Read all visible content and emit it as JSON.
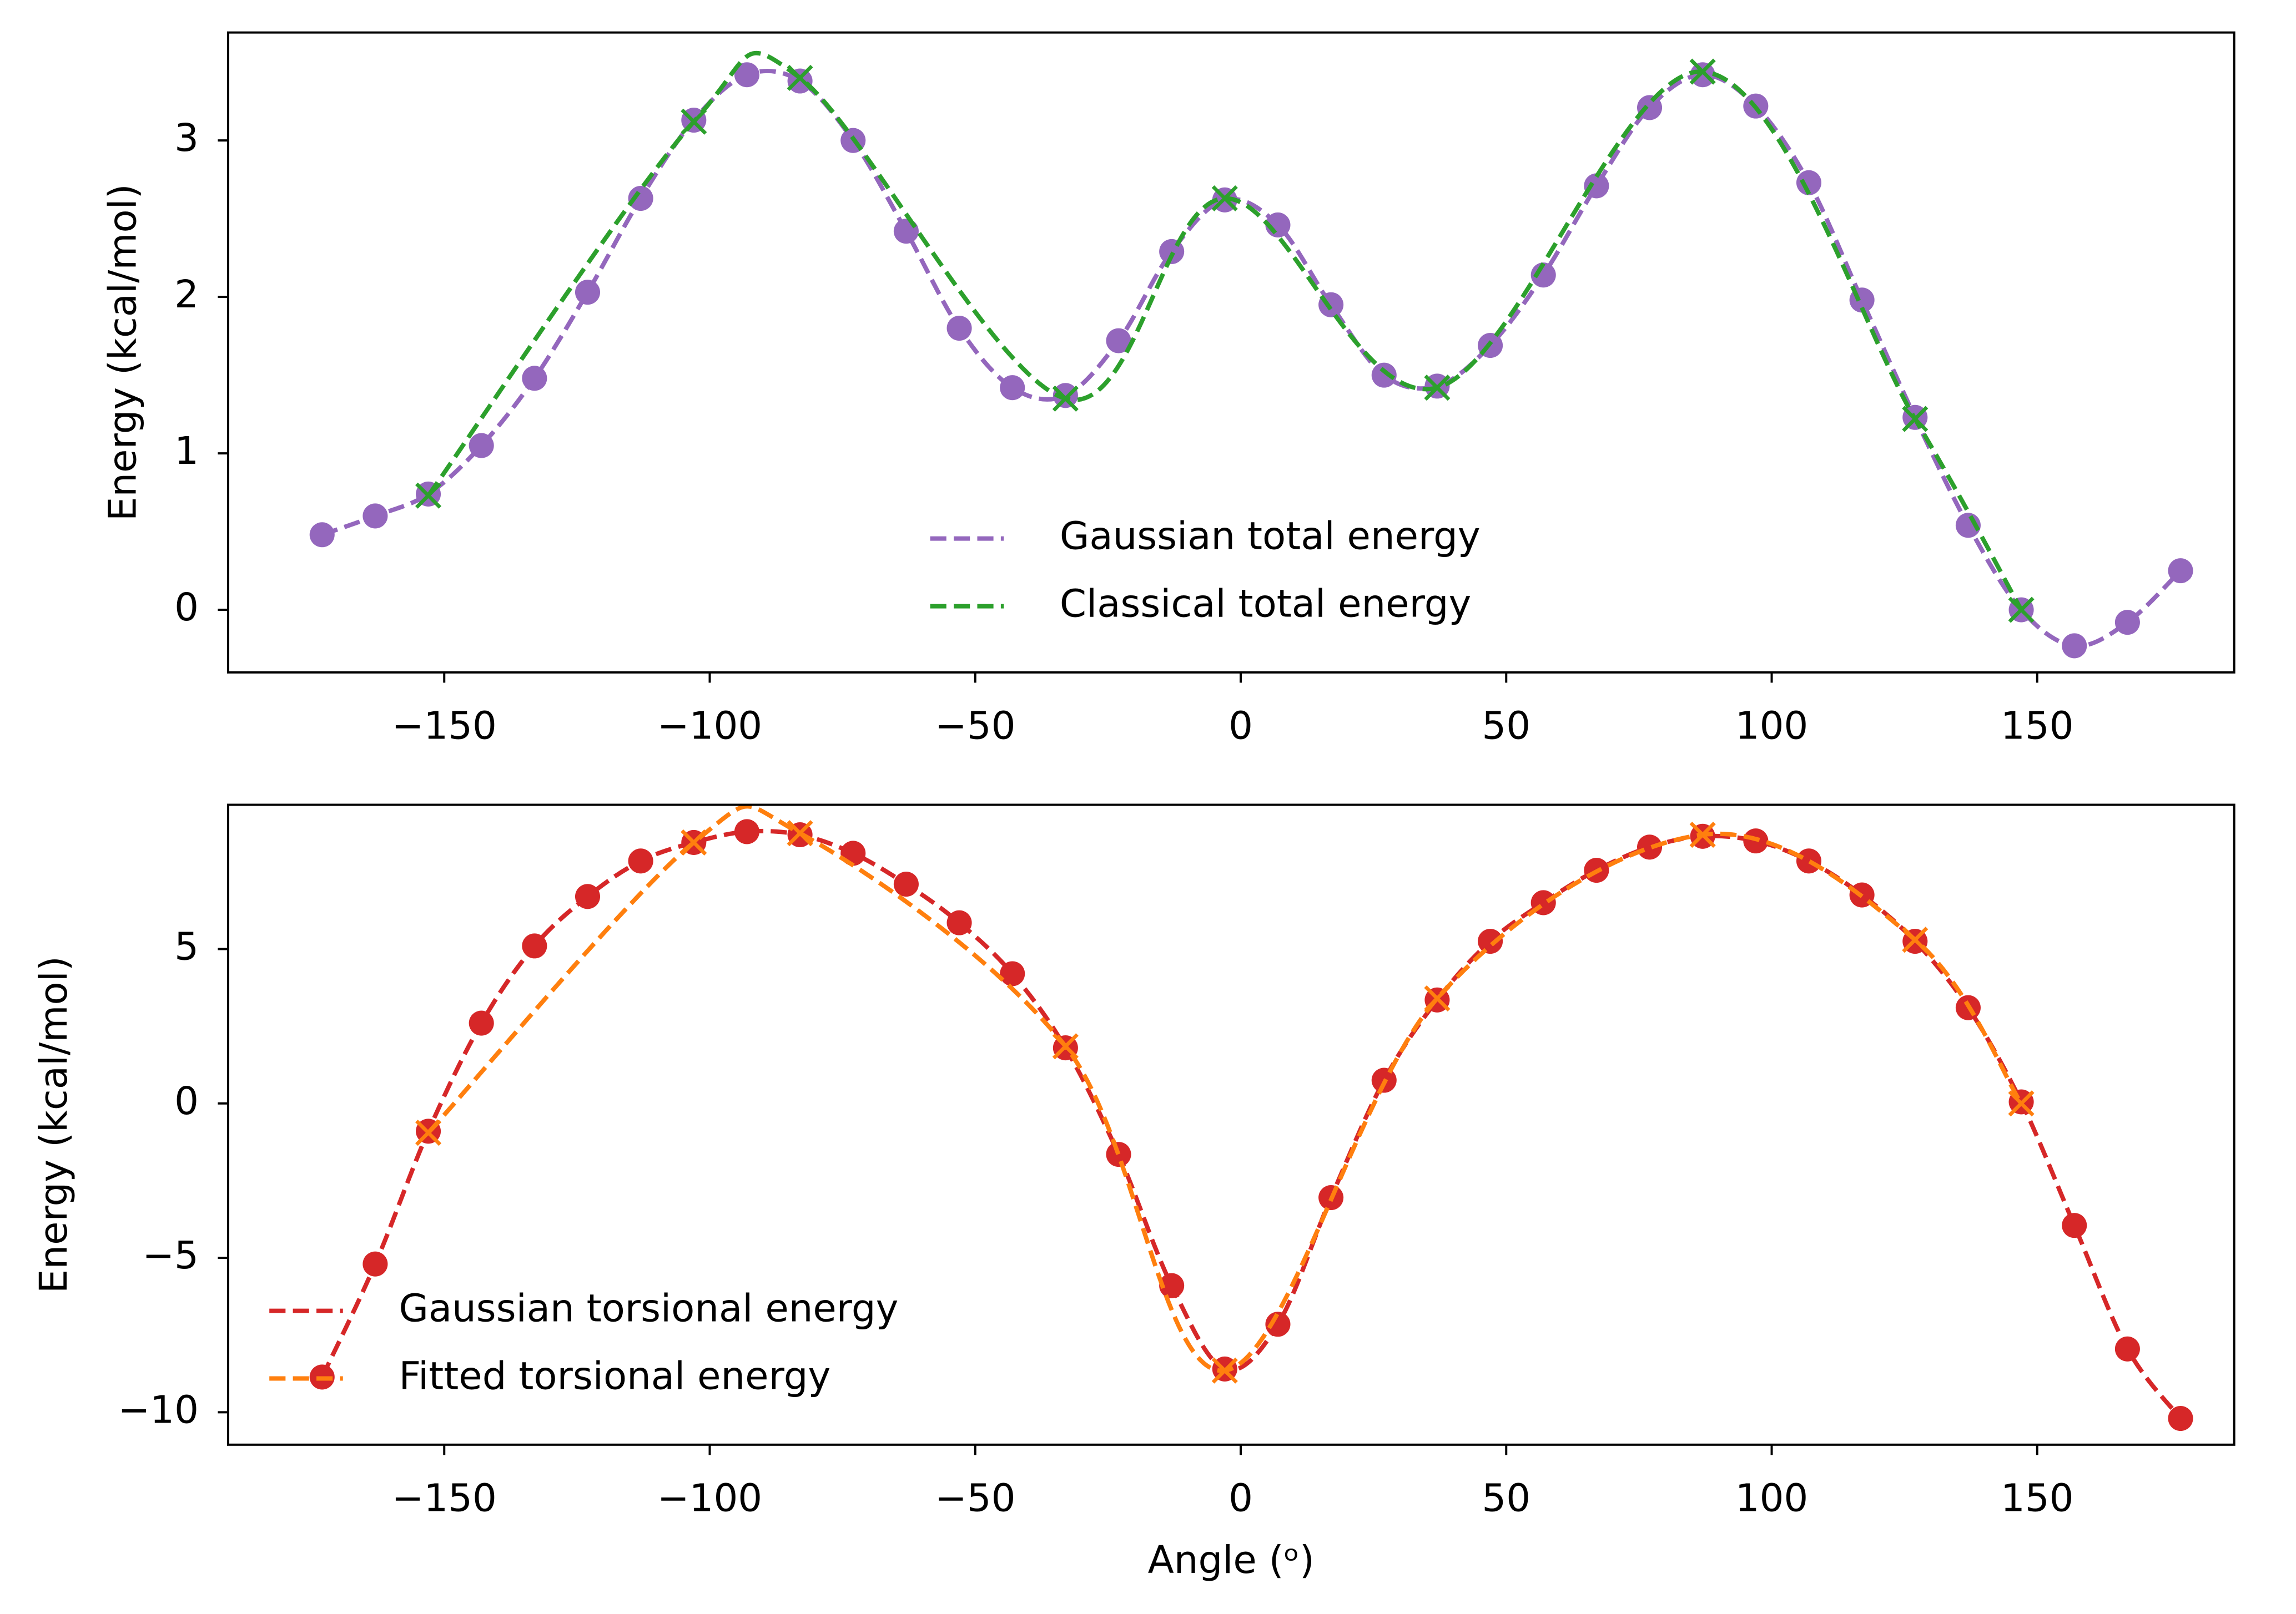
{
  "chart_data": [
    {
      "type": "line",
      "y_label": "Energy (kcal/mol)",
      "xlim": [
        -190.7,
        187.1
      ],
      "ylim": [
        -0.4,
        3.69
      ],
      "xticks": [
        {
          "value": -150,
          "label": "−150"
        },
        {
          "value": -100,
          "label": "−100"
        },
        {
          "value": -50,
          "label": "−50"
        },
        0,
        50,
        100,
        150
      ],
      "yticks": [
        0,
        1,
        2,
        3
      ],
      "legend": "lower center",
      "series": [
        {
          "name": "Gaussian total energy",
          "color": "#9467bd",
          "marker": "o",
          "linestyle": "dashed",
          "x": [
            -173,
            -163,
            -153,
            -143,
            -133,
            -123,
            -113,
            -103,
            -93,
            -83,
            -73,
            -63,
            -53,
            -43,
            -33,
            -23,
            -13,
            -3,
            7,
            17,
            27,
            37,
            47,
            57,
            67,
            77,
            87,
            97,
            107,
            117,
            127,
            137,
            147,
            157,
            167,
            177
          ],
          "values": [
            0.48,
            0.6,
            0.74,
            1.05,
            1.48,
            2.03,
            2.63,
            3.13,
            3.42,
            3.38,
            3.0,
            2.42,
            1.8,
            1.42,
            1.37,
            1.72,
            2.29,
            2.62,
            2.46,
            1.95,
            1.5,
            1.43,
            1.69,
            2.14,
            2.71,
            3.21,
            3.42,
            3.22,
            2.73,
            1.98,
            1.23,
            0.54,
            0.0,
            -0.23,
            -0.08,
            0.25
          ]
        },
        {
          "name": "Classical total energy",
          "color": "#2ca02c",
          "marker": "x",
          "linestyle": "dashed",
          "x": [
            -153,
            -103,
            -83,
            -33,
            -3,
            37,
            87,
            127,
            147
          ],
          "values": [
            0.73,
            3.12,
            3.4,
            1.35,
            2.63,
            1.42,
            3.44,
            1.22,
            0.0
          ]
        }
      ]
    },
    {
      "type": "line",
      "x_label": "Angle (ᵒ)",
      "y_label": "Energy (kcal/mol)",
      "xlim": [
        -190.7,
        187.1
      ],
      "ylim": [
        -11.05,
        9.67
      ],
      "xticks": [
        {
          "value": -150,
          "label": "−150"
        },
        {
          "value": -100,
          "label": "−100"
        },
        {
          "value": -50,
          "label": "−50"
        },
        0,
        50,
        100,
        150
      ],
      "yticks": [
        {
          "value": -10,
          "label": "−10"
        },
        {
          "value": -5,
          "label": "−5"
        },
        0,
        5
      ],
      "legend": "lower left",
      "series": [
        {
          "name": "Gaussian torsional energy",
          "color": "#d62728",
          "marker": "o",
          "linestyle": "dashed",
          "x": [
            -173,
            -163,
            -153,
            -143,
            -133,
            -123,
            -113,
            -103,
            -93,
            -83,
            -73,
            -63,
            -53,
            -43,
            -33,
            -23,
            -13,
            -3,
            7,
            17,
            27,
            37,
            47,
            57,
            67,
            77,
            87,
            97,
            107,
            117,
            127,
            137,
            147,
            157,
            167,
            177
          ],
          "values": [
            -8.86,
            -5.2,
            -0.9,
            2.6,
            5.1,
            6.7,
            7.85,
            8.45,
            8.8,
            8.7,
            8.1,
            7.1,
            5.85,
            4.2,
            1.8,
            -1.65,
            -5.9,
            -8.6,
            -7.15,
            -3.05,
            0.75,
            3.35,
            5.25,
            6.5,
            7.55,
            8.3,
            8.65,
            8.5,
            7.85,
            6.75,
            5.25,
            3.1,
            0.05,
            -3.95,
            -7.95,
            -10.2
          ]
        },
        {
          "name": "Fitted torsional energy",
          "color": "#ff7f0e",
          "marker": "x",
          "linestyle": "dashed",
          "x": [
            -153,
            -103,
            -83,
            -33,
            -3,
            37,
            87,
            127,
            147
          ],
          "values": [
            -0.95,
            8.45,
            8.75,
            1.85,
            -8.65,
            3.4,
            8.7,
            5.3,
            0.0
          ]
        }
      ]
    }
  ]
}
